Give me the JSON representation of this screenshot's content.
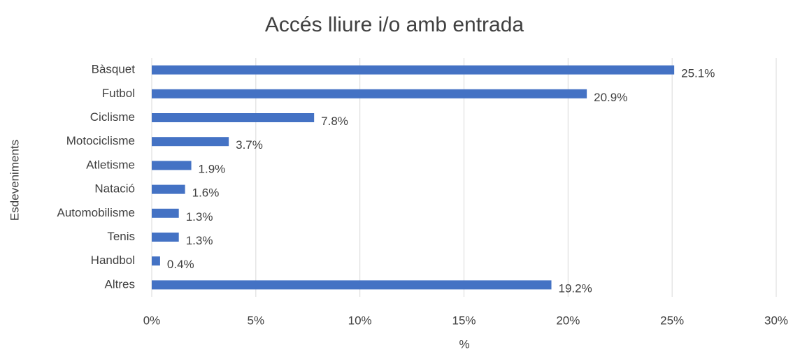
{
  "chart_data": {
    "type": "bar",
    "orientation": "horizontal",
    "title": "Accés lliure i/o amb entrada",
    "xlabel": "%",
    "ylabel": "Esdeveniments",
    "categories": [
      "Bàsquet",
      "Futbol",
      "Ciclisme",
      "Motociclisme",
      "Atletisme",
      "Natació",
      "Automobilisme",
      "Tenis",
      "Handbol",
      "Altres"
    ],
    "values": [
      25.1,
      20.9,
      7.8,
      3.7,
      1.9,
      1.6,
      1.3,
      1.3,
      0.4,
      19.2
    ],
    "value_labels": [
      "25.1%",
      "20.9%",
      "7.8%",
      "3.7%",
      "1.9%",
      "1.6%",
      "1.3%",
      "1.3%",
      "0.4%",
      "19.2%"
    ],
    "color": "#4472c4",
    "xlim": [
      0,
      30
    ],
    "xticks": [
      {
        "value": 0,
        "label": "0%"
      },
      {
        "value": 5,
        "label": "5%"
      },
      {
        "value": 10,
        "label": "10%"
      },
      {
        "value": 15,
        "label": "15%"
      },
      {
        "value": 20,
        "label": "20%"
      },
      {
        "value": 25,
        "label": "25%"
      },
      {
        "value": 30,
        "label": "30%"
      }
    ],
    "grid": true
  }
}
